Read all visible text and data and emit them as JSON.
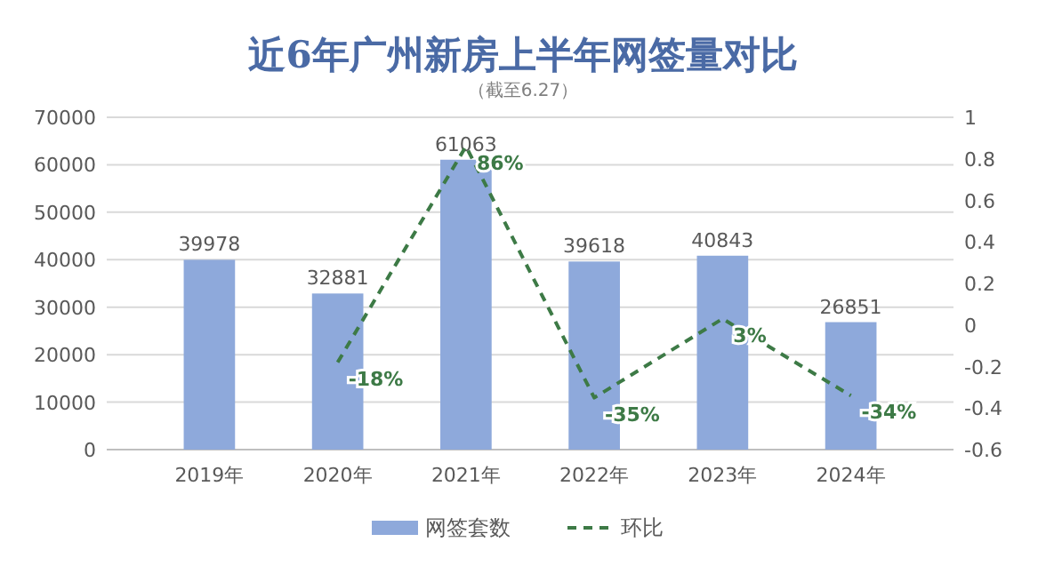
{
  "chart_data": {
    "type": "bar",
    "title": "近6年广州新房上半年网签量对比",
    "subtitle": "（截至6.27）",
    "categories": [
      "2019年",
      "2020年",
      "2021年",
      "2022年",
      "2023年",
      "2024年"
    ],
    "series": [
      {
        "name": "网签套数",
        "color": "#8ea9db",
        "values": [
          39978,
          32881,
          61063,
          39618,
          40843,
          26851
        ]
      },
      {
        "name": "环比",
        "type": "line",
        "axis": "y2",
        "color": "#3d7a46",
        "line_style": "dashed",
        "marker": "none",
        "values": [
          null,
          -0.18,
          0.86,
          -0.35,
          0.03,
          -0.34
        ],
        "value_labels": [
          null,
          "-18%",
          "86%",
          "-35%",
          "3%",
          "-34%"
        ]
      }
    ],
    "data_labels": true,
    "ylim": [
      0,
      70000
    ],
    "yticks": [
      0,
      10000,
      20000,
      30000,
      40000,
      50000,
      60000,
      70000
    ],
    "y2lim": [
      -0.6,
      1
    ],
    "y2ticks": [
      -0.6,
      -0.4,
      -0.2,
      0,
      0.2,
      0.4,
      0.6,
      0.8,
      1
    ],
    "grid": "y",
    "legend": "bottom"
  }
}
